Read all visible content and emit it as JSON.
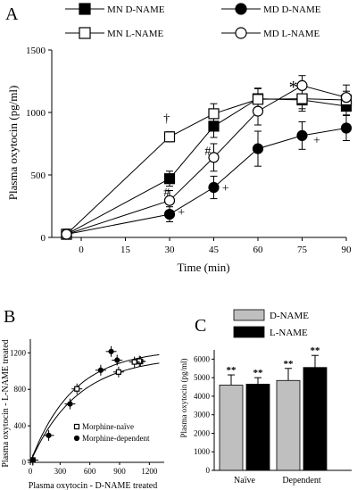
{
  "panel_labels": [
    "A",
    "B",
    "C"
  ],
  "chart_data": [
    {
      "panel": "A",
      "type": "line",
      "xlabel": "Time (min)",
      "ylabel": "Plasma oxytocin (pg/ml)",
      "x_ticks": [
        0,
        15,
        30,
        45,
        60,
        75,
        90
      ],
      "y_ticks": [
        0,
        500,
        1000,
        1500
      ],
      "xlim": [
        -10,
        90
      ],
      "ylim": [
        0,
        1500
      ],
      "x": [
        -5,
        30,
        45,
        60,
        75,
        90
      ],
      "legend_position": "top",
      "series": [
        {
          "name": "MN D-NAME",
          "marker": "filled-square",
          "values": [
            25,
            470,
            890,
            1110,
            1100,
            1050
          ],
          "errors": [
            40,
            60,
            90,
            80,
            90,
            70
          ]
        },
        {
          "name": "MD D-NAME",
          "marker": "filled-circle",
          "values": [
            25,
            185,
            400,
            710,
            815,
            875
          ],
          "errors": [
            40,
            60,
            90,
            140,
            110,
            100
          ]
        },
        {
          "name": "MN L-NAME",
          "marker": "open-square",
          "values": [
            25,
            805,
            990,
            1105,
            1110,
            1100
          ],
          "errors": [
            40,
            40,
            80,
            90,
            80,
            70
          ]
        },
        {
          "name": "MD L-NAME",
          "marker": "open-circle",
          "values": [
            25,
            295,
            640,
            1010,
            1215,
            1120
          ],
          "errors": [
            40,
            80,
            110,
            110,
            80,
            100
          ]
        }
      ],
      "annotations": [
        {
          "text": "†",
          "x": 29,
          "y": 920
        },
        {
          "text": "#",
          "x": 29,
          "y": 330
        },
        {
          "text": "+",
          "x": 34,
          "y": 170
        },
        {
          "text": "#",
          "x": 43,
          "y": 660
        },
        {
          "text": "+",
          "x": 49,
          "y": 365
        },
        {
          "text": "*",
          "x": 72,
          "y": 1230
        },
        {
          "text": "+",
          "x": 80,
          "y": 745
        }
      ]
    },
    {
      "panel": "B",
      "type": "scatter",
      "xlabel": "Plasma oxytocin - D-NAME treated",
      "ylabel": "Plasma oxytocin - L-NAME treated",
      "x_ticks": [
        0,
        300,
        600,
        900,
        1200
      ],
      "y_ticks": [
        0,
        400,
        800,
        1200
      ],
      "xlim": [
        0,
        1350
      ],
      "ylim": [
        0,
        1350
      ],
      "legend_position": "bottom-right",
      "series": [
        {
          "name": "Morphine-naïve",
          "marker": "open-square",
          "points": [
            [
              25,
              25
            ],
            [
              470,
              805
            ],
            [
              890,
              990
            ],
            [
              1110,
              1105
            ],
            [
              1100,
              1110
            ],
            [
              1050,
              1100
            ]
          ]
        },
        {
          "name": "Morphine-dependent",
          "marker": "filled-circle",
          "points": [
            [
              25,
              25
            ],
            [
              185,
              295
            ],
            [
              400,
              640
            ],
            [
              710,
              1010
            ],
            [
              815,
              1215
            ],
            [
              875,
              1120
            ]
          ]
        }
      ]
    },
    {
      "panel": "C",
      "type": "bar",
      "ylabel": "Plasma oxytocin (pg/ml)",
      "y_ticks": [
        0,
        1000,
        2000,
        3000,
        4000,
        5000,
        6000
      ],
      "ylim": [
        0,
        6500
      ],
      "categories": [
        "Naïve",
        "Dependent"
      ],
      "legend_position": "top",
      "series": [
        {
          "name": "D-NAME",
          "color": "#bfbfbf",
          "values": [
            4600,
            4850
          ],
          "errors": [
            550,
            650
          ]
        },
        {
          "name": "L-NAME",
          "color": "#000000",
          "values": [
            4650,
            5550
          ],
          "errors": [
            350,
            650
          ]
        }
      ],
      "bar_annotations": [
        "**",
        "**",
        "**",
        "**"
      ]
    }
  ]
}
